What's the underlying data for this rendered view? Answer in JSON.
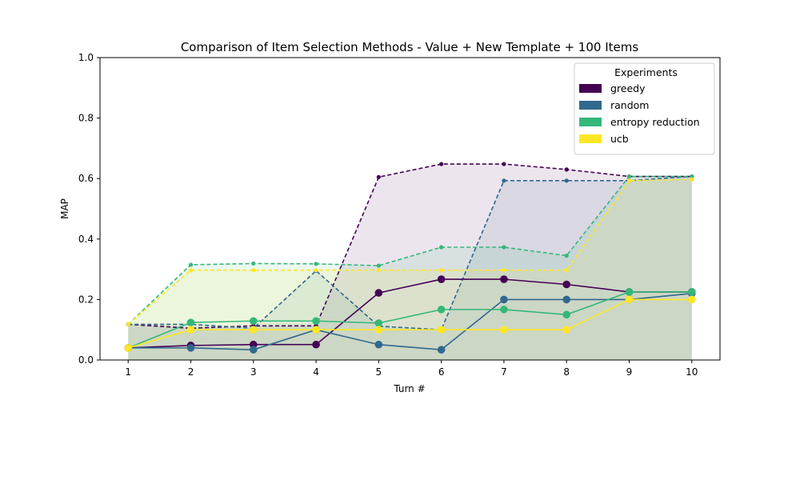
{
  "chart_data": {
    "type": "line",
    "title": "Comparison of Item Selection Methods - Value + New Template + 100 Items",
    "xlabel": "Turn #",
    "ylabel": "MAP",
    "xlim": [
      0.55,
      10.45
    ],
    "ylim": [
      0,
      1
    ],
    "x": [
      1,
      2,
      3,
      4,
      5,
      6,
      7,
      8,
      9,
      10
    ],
    "x_ticks": [
      "1",
      "2",
      "3",
      "4",
      "5",
      "6",
      "7",
      "8",
      "9",
      "10"
    ],
    "y_ticks": [
      "0.0",
      "0.2",
      "0.4",
      "0.6",
      "0.8",
      "1.0"
    ],
    "grid": false,
    "legend": {
      "title": "Experiments",
      "placement": "top-right"
    },
    "series": [
      {
        "name": "greedy",
        "color": "#440154",
        "values": [
          0.04,
          0.048,
          0.051,
          0.051,
          0.222,
          0.267,
          0.267,
          0.25,
          0.225,
          0.225
        ],
        "upper": [
          0.118,
          0.105,
          0.113,
          0.113,
          0.605,
          0.648,
          0.648,
          0.63,
          0.607,
          0.607
        ]
      },
      {
        "name": "random",
        "color": "#31688e",
        "values": [
          0.04,
          0.04,
          0.034,
          0.1,
          0.051,
          0.034,
          0.2,
          0.2,
          0.2,
          0.22
        ],
        "upper": [
          0.118,
          0.118,
          0.105,
          0.295,
          0.112,
          0.1,
          0.593,
          0.593,
          0.593,
          0.607
        ]
      },
      {
        "name": "entropy reduction",
        "color": "#35b779",
        "values": [
          0.04,
          0.124,
          0.129,
          0.129,
          0.122,
          0.167,
          0.167,
          0.15,
          0.225,
          0.225
        ],
        "upper": [
          0.118,
          0.315,
          0.319,
          0.318,
          0.312,
          0.373,
          0.373,
          0.345,
          0.607,
          0.607
        ]
      },
      {
        "name": "ucb",
        "color": "#fde725",
        "values": [
          0.04,
          0.1,
          0.1,
          0.1,
          0.1,
          0.1,
          0.1,
          0.1,
          0.2,
          0.2
        ],
        "upper": [
          0.118,
          0.297,
          0.297,
          0.297,
          0.297,
          0.297,
          0.297,
          0.297,
          0.593,
          0.597
        ]
      }
    ]
  }
}
